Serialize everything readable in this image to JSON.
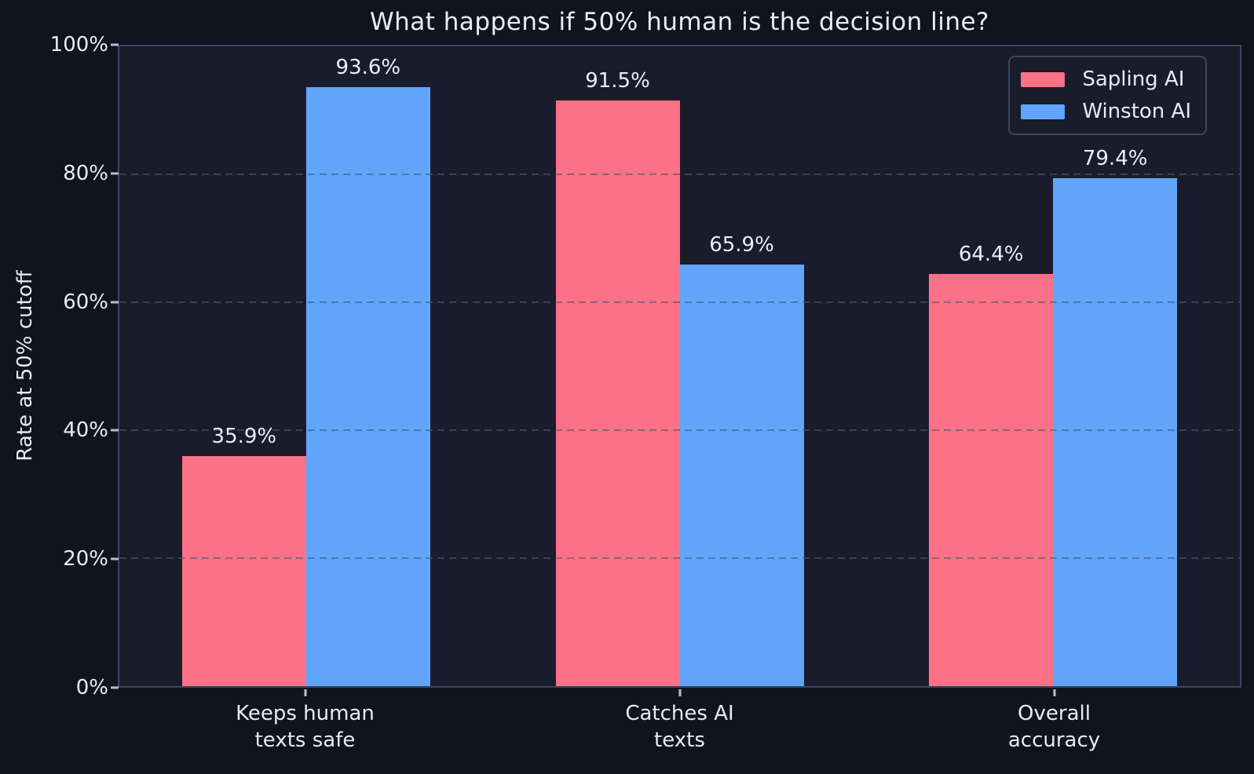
{
  "chart_data": {
    "type": "bar",
    "title": "What happens if 50% human is the decision line?",
    "xlabel": "",
    "ylabel": "Rate at 50% cutoff",
    "categories": [
      "Keeps human\ntexts safe",
      "Catches AI\ntexts",
      "Overall\naccuracy"
    ],
    "series": [
      {
        "name": "Sapling AI",
        "color": "#fb7185",
        "values": [
          35.9,
          91.5,
          64.4
        ],
        "bar_labels": [
          "35.9%",
          "91.5%",
          "64.4%"
        ]
      },
      {
        "name": "Winston AI",
        "color": "#60a5fa",
        "values": [
          93.6,
          65.9,
          79.4
        ],
        "bar_labels": [
          "93.6%",
          "65.9%",
          "79.4%"
        ]
      }
    ],
    "ylim": [
      0,
      100
    ],
    "yticks": [
      {
        "value": 0,
        "label": "0%"
      },
      {
        "value": 20,
        "label": "20%"
      },
      {
        "value": 40,
        "label": "40%"
      },
      {
        "value": 60,
        "label": "60%"
      },
      {
        "value": 80,
        "label": "80%"
      },
      {
        "value": 100,
        "label": "100%"
      }
    ],
    "grid": "horizontal-dashed",
    "legend_position": "top-right"
  },
  "colors": {
    "figure_background": "#11131f",
    "plot_background": "#1a1c2b",
    "spine": "#3f4460",
    "grid": "#505672",
    "text": "#e9eaf2",
    "series_sapling": "#fb7185",
    "series_winston": "#60a5fa"
  }
}
